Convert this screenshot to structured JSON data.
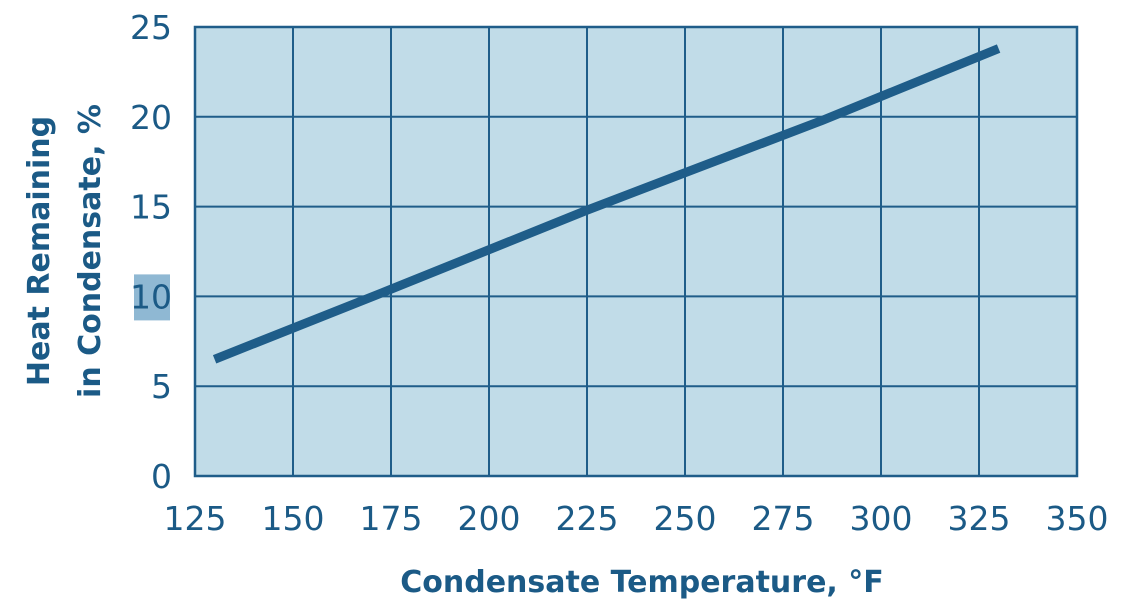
{
  "chart_data": {
    "type": "line",
    "title": "",
    "xlabel": "Condensate Temperature, °F",
    "ylabel_lines": [
      "Heat  Remaining",
      "in Condensate, %"
    ],
    "xlim": [
      125,
      350
    ],
    "ylim": [
      0,
      25
    ],
    "x_ticks": [
      125,
      150,
      175,
      200,
      225,
      250,
      275,
      300,
      325,
      350
    ],
    "y_ticks": [
      0,
      5,
      10,
      15,
      20,
      25
    ],
    "x_tick_labels": [
      "125",
      "150",
      "175",
      "200",
      "225",
      "250",
      "275",
      "300",
      "325",
      "350"
    ],
    "y_tick_labels": [
      "0",
      "5",
      "10",
      "15",
      "20",
      "25"
    ],
    "highlighted_y_tick": "10",
    "grid": true,
    "series": [
      {
        "x": [
          130,
          175,
          225,
          285,
          330
        ],
        "y": [
          6.5,
          10.4,
          14.8,
          19.8,
          23.8
        ],
        "color": "#1f5d89"
      }
    ]
  },
  "colors": {
    "plot_background": "#c1dce8",
    "grid": "#1f5d89",
    "frame": "#1f5d89",
    "text": "#1b5a86",
    "highlight": "#8fb8d3",
    "line": "#1f5d89"
  }
}
